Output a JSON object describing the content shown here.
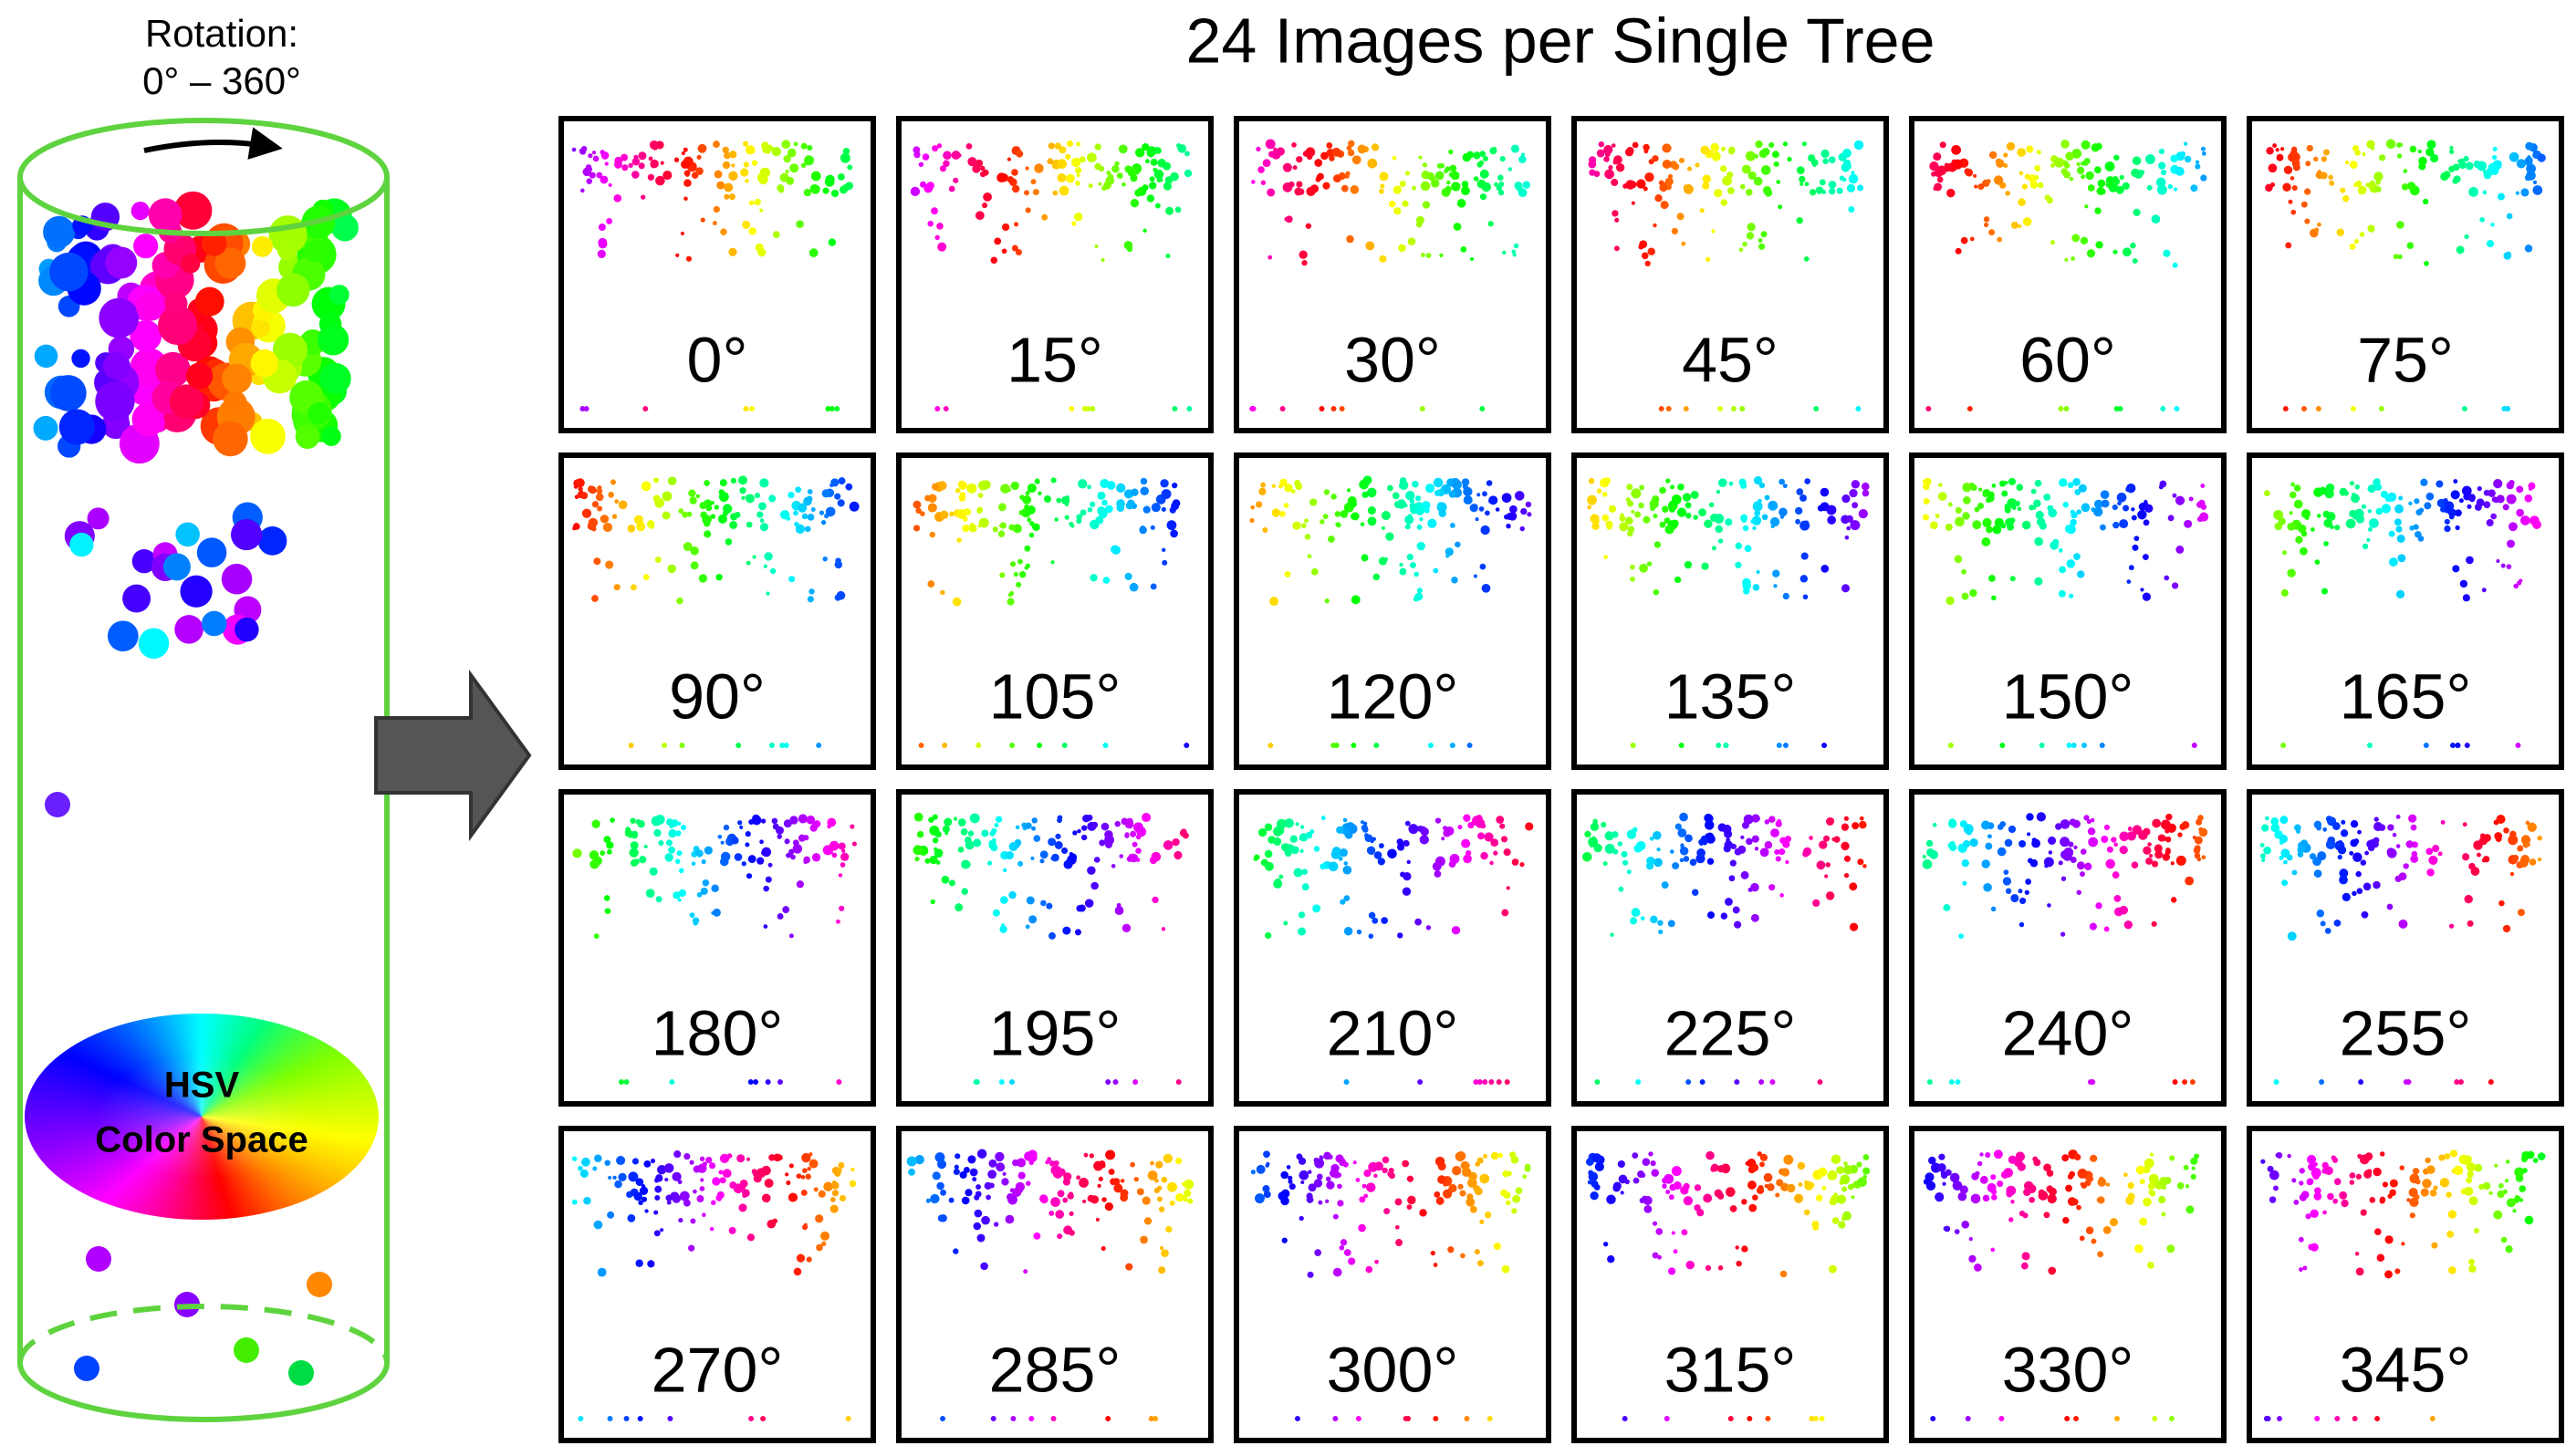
{
  "header": {
    "title": "24 Images per Single Tree"
  },
  "rotation": {
    "label": "Rotation:",
    "range": "0° – 360°"
  },
  "color_space": {
    "line1": "HSV",
    "line2": "Color Space"
  },
  "panels": [
    {
      "label": "0°"
    },
    {
      "label": "15°"
    },
    {
      "label": "30°"
    },
    {
      "label": "45°"
    },
    {
      "label": "60°"
    },
    {
      "label": "75°"
    },
    {
      "label": "90°"
    },
    {
      "label": "105°"
    },
    {
      "label": "120°"
    },
    {
      "label": "135°"
    },
    {
      "label": "150°"
    },
    {
      "label": "165°"
    },
    {
      "label": "180°"
    },
    {
      "label": "195°"
    },
    {
      "label": "210°"
    },
    {
      "label": "225°"
    },
    {
      "label": "240°"
    },
    {
      "label": "255°"
    },
    {
      "label": "270°"
    },
    {
      "label": "285°"
    },
    {
      "label": "300°"
    },
    {
      "label": "315°"
    },
    {
      "label": "330°"
    },
    {
      "label": "345°"
    }
  ]
}
